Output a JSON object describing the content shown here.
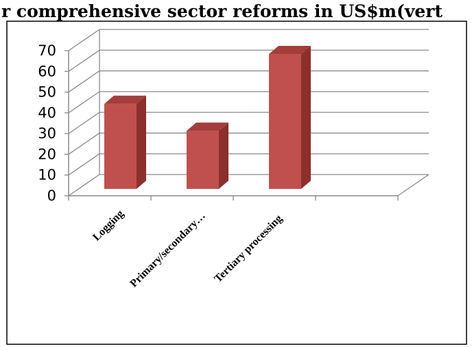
{
  "chart_data": {
    "type": "bar",
    "title": "r comprehensive sector reforms  in US$m(vert",
    "categories": [
      "Logging",
      "Primary/secondary…",
      "Tertiary processing"
    ],
    "values": [
      45,
      32,
      69
    ],
    "yticks": [
      "0",
      "10",
      "20",
      "30",
      "40",
      "50",
      "60",
      "70"
    ],
    "ylim": [
      0,
      70
    ],
    "grid": true,
    "style": "3d-column",
    "colors": {
      "front": "#c0504d",
      "side": "#8c2f2d",
      "top": "#a33e3b",
      "grid": "#898989"
    }
  }
}
